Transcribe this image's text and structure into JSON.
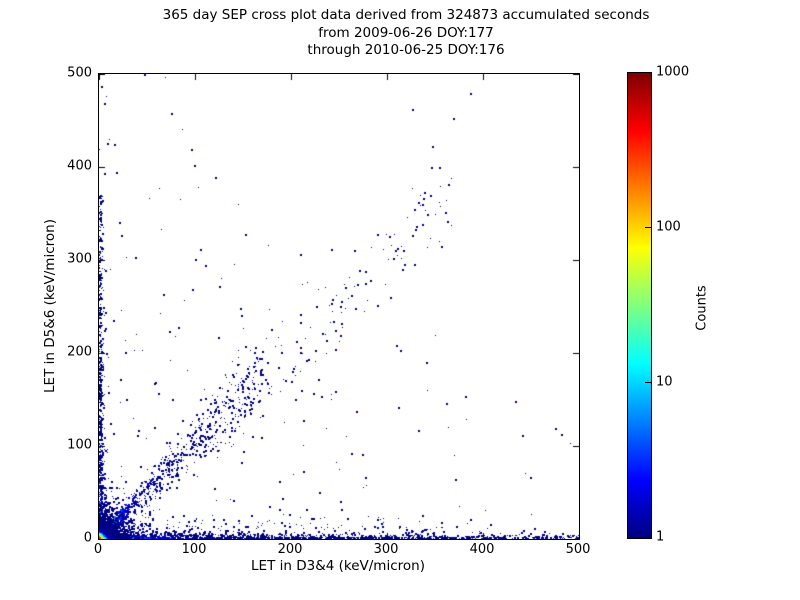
{
  "title": {
    "line1": "365 day SEP cross plot data derived from 324873 accumulated seconds",
    "line2": "from 2009-06-26 DOY:177",
    "line3": "through 2010-06-25 DOY:176"
  },
  "chart_data": {
    "type": "scatter",
    "subtype": "2d-histogram-cross-plot",
    "title": "365 day SEP cross plot data derived from 324873 accumulated seconds from 2009-06-26 DOY:177 through 2010-06-25 DOY:176",
    "xlabel": "LET in D3&4 (keV/micron)",
    "ylabel": "LET in D5&6 (keV/micron)",
    "xlim": [
      0,
      500
    ],
    "ylim": [
      0,
      500
    ],
    "xticks": [
      0,
      100,
      200,
      300,
      400,
      500
    ],
    "yticks": [
      0,
      100,
      200,
      300,
      400,
      500
    ],
    "grid": false,
    "colorbar": {
      "label": "Counts",
      "scale": "log",
      "min": 1,
      "max": 1000,
      "ticks": [
        1,
        10,
        100,
        1000
      ],
      "colormap": "jet",
      "colormap_stops": [
        [
          0,
          "#00007f"
        ],
        [
          0.125,
          "#0000ff"
        ],
        [
          0.375,
          "#00ffff"
        ],
        [
          0.625,
          "#ffff00"
        ],
        [
          0.875,
          "#ff0000"
        ],
        [
          1,
          "#7f0000"
        ]
      ]
    },
    "point_color_low": "#00007f",
    "features_summary": "Very dense hot cluster (counts up to ~1000) at origin within ~12 keV/micron; dense band along x-axis (y<5) out to x=500; dense band along y-axis (x<4) up to y~370; diagonal y~x band from origin to ~(170,180) continuing as sparse diagonal scatter to ~(386,478); sparse single-count points across lower-left region.",
    "generation": {
      "seed": 1337,
      "core_grid": {
        "extent": 13,
        "amplitude": 1400,
        "tau": 1.5
      },
      "corner_speckle": {
        "points": 1600,
        "tau_x": 11,
        "tau_y": 11,
        "max": 55
      },
      "diagonal_band": {
        "points": 680,
        "length": 170,
        "slope": 1.06,
        "spread_base": 1.5,
        "spread_growth": 0.13,
        "count_amp": 26,
        "count_tau": 10,
        "power": 1.7
      },
      "diagonal_wide": {
        "points": 140,
        "length": 170,
        "slope": 0.9,
        "spread": 14,
        "power": 1.5
      },
      "diagonal_sparse": {
        "points": 120,
        "t_min": 140,
        "t_max": 370,
        "slope": 1.02,
        "spread": 26
      },
      "bottom_band": {
        "points": 1500,
        "x_power": 2.4,
        "y_tau": 2.0,
        "y_max": 26,
        "count_amp": 36,
        "count_tau_x": 22,
        "count_tau_y": 2.5
      },
      "bottom_fringe": {
        "points": 240,
        "x_max": 360,
        "x_power": 1.6,
        "y_min": 4,
        "y_span": 22,
        "y_power": 2.2
      },
      "left_band": {
        "points": 680,
        "y_max": 372,
        "y_power": 1.9,
        "x_tau": 1.7,
        "x_max": 22,
        "count_amp": 22,
        "count_tau_y": 26,
        "count_tau_x": 2.5
      },
      "background": {
        "points": 250,
        "power": 1.7,
        "sum_max": 600
      }
    },
    "outliers": [
      [
        386,
        478
      ],
      [
        326,
        461
      ],
      [
        369,
        452
      ],
      [
        346,
        399
      ],
      [
        338,
        366
      ],
      [
        332,
        361
      ],
      [
        356,
        314
      ],
      [
        302,
        325
      ],
      [
        308,
        310
      ],
      [
        318,
        295
      ],
      [
        316,
        289
      ],
      [
        121,
        388
      ],
      [
        152,
        327
      ],
      [
        23,
        326
      ],
      [
        97,
        268
      ],
      [
        148,
        240
      ],
      [
        449,
        66
      ],
      [
        169,
        109
      ],
      [
        274,
        90
      ],
      [
        212,
        72
      ],
      [
        188,
        61
      ],
      [
        177,
        34
      ],
      [
        226,
        249
      ],
      [
        244,
        233
      ],
      [
        246,
        224
      ],
      [
        236,
        213
      ],
      [
        246,
        203
      ],
      [
        267,
        247
      ],
      [
        290,
        251
      ],
      [
        309,
        208
      ],
      [
        246,
        158
      ],
      [
        231,
        153
      ],
      [
        194,
        170
      ],
      [
        186,
        184
      ],
      [
        27,
        200
      ],
      [
        5,
        109
      ]
    ]
  }
}
